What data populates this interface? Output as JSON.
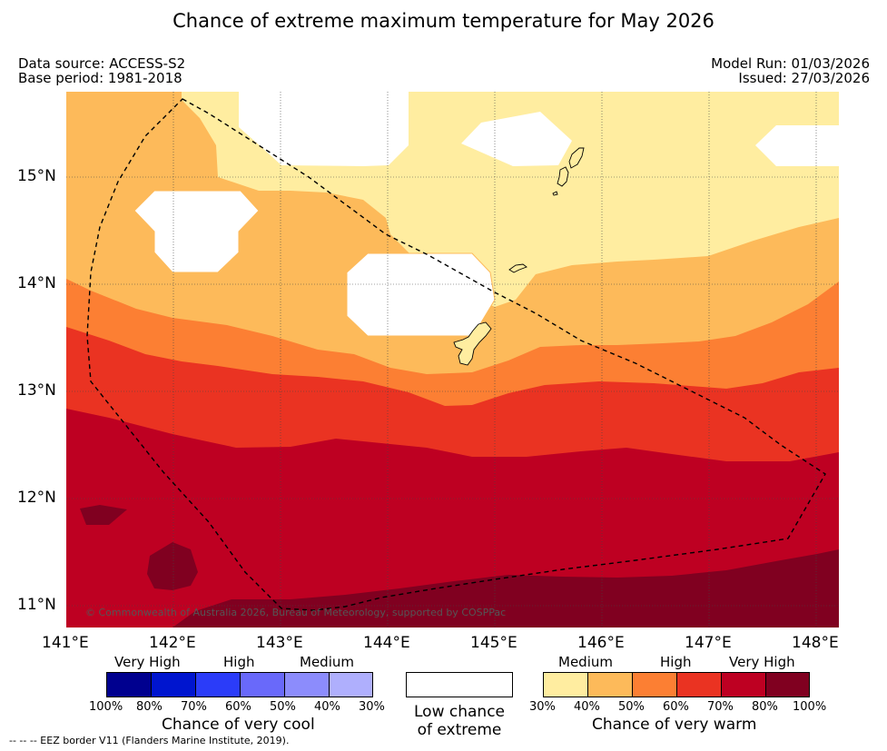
{
  "title": "Chance of extreme maximum temperature for May 2026",
  "meta": {
    "data_source": "Data source: ACCESS-S2",
    "base_period": "Base period: 1981-2018",
    "model_run": "Model Run: 01/03/2026",
    "issued": "Issued: 27/03/2026"
  },
  "map": {
    "lat_labels": [
      "15°N",
      "14°N",
      "13°N",
      "12°N",
      "11°N"
    ],
    "lon_labels": [
      "141°E",
      "142°E",
      "143°E",
      "144°E",
      "145°E",
      "146°E",
      "147°E",
      "148°E"
    ],
    "copyright": "© Commonwealth of Australia 2026, Bureau of Meteorology, supported by COSPPac"
  },
  "legend": {
    "cool": {
      "title": "Chance of very cool",
      "categories": [
        "Very High",
        "High",
        "Medium"
      ],
      "ticks": [
        "100%",
        "80%",
        "70%",
        "60%",
        "50%",
        "40%",
        "30%"
      ],
      "colors": [
        "#00008f",
        "#0015cf",
        "#2b3cf9",
        "#6969fa",
        "#8c8cfc",
        "#afaffd"
      ]
    },
    "low": {
      "line1": "Low chance",
      "line2": "of extreme"
    },
    "warm": {
      "title": "Chance of very warm",
      "categories": [
        "Medium",
        "High",
        "Very High"
      ],
      "ticks": [
        "30%",
        "40%",
        "50%",
        "60%",
        "70%",
        "80%",
        "100%"
      ],
      "colors": [
        "#ffeda0",
        "#fdba5a",
        "#fc7f33",
        "#ea3322",
        "#be0022",
        "#800020"
      ]
    }
  },
  "footnote": "--  --  -- EEZ border V11 (Flanders Marine Institute, 2019)."
}
